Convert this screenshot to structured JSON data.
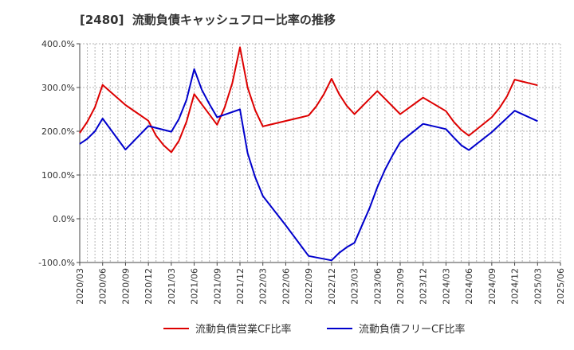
{
  "chart_data": {
    "type": "line",
    "title": "[2480]  流動負債キャッシュフロー比率の推移",
    "xlabel": "",
    "ylabel": "",
    "ylim": [
      -100,
      400
    ],
    "y_ticks": [
      "-100.0%",
      "0.0%",
      "100.0%",
      "200.0%",
      "300.0%",
      "400.0%"
    ],
    "y_tick_values": [
      -100,
      0,
      100,
      200,
      300,
      400
    ],
    "x_ticks": [
      "2020/03",
      "2020/06",
      "2020/09",
      "2020/12",
      "2021/03",
      "2021/06",
      "2021/09",
      "2021/12",
      "2022/03",
      "2022/06",
      "2022/09",
      "2022/12",
      "2023/03",
      "2023/06",
      "2023/09",
      "2023/12",
      "2024/03",
      "2024/06",
      "2024/09",
      "2024/12",
      "2025/03",
      "2025/06"
    ],
    "x_months": [
      "2020/03",
      "2020/04",
      "2020/05",
      "2020/06",
      "2020/07",
      "2020/08",
      "2020/09",
      "2020/10",
      "2020/11",
      "2020/12",
      "2021/01",
      "2021/02",
      "2021/03",
      "2021/04",
      "2021/05",
      "2021/06",
      "2021/07",
      "2021/08",
      "2021/09",
      "2021/10",
      "2021/11",
      "2021/12",
      "2022/01",
      "2022/02",
      "2022/03",
      "2022/04",
      "2022/05",
      "2022/06",
      "2022/07",
      "2022/08",
      "2022/09",
      "2022/10",
      "2022/11",
      "2022/12",
      "2023/01",
      "2023/02",
      "2023/03",
      "2023/04",
      "2023/05",
      "2023/06",
      "2023/07",
      "2023/08",
      "2023/09",
      "2023/10",
      "2023/11",
      "2023/12",
      "2024/01",
      "2024/02",
      "2024/03",
      "2024/04",
      "2024/05",
      "2024/06",
      "2024/07",
      "2024/08",
      "2024/09",
      "2024/10",
      "2024/11",
      "2024/12",
      "2025/01",
      "2025/02",
      "2025/03",
      "2025/04",
      "2025/05",
      "2025/06"
    ],
    "grid": true,
    "legend_position": "bottom",
    "series": [
      {
        "name": "流動負債営業CF比率",
        "color": "#dd0000",
        "points": [
          [
            "2020/03",
            196
          ],
          [
            "2020/04",
            222
          ],
          [
            "2020/05",
            255
          ],
          [
            "2020/06",
            306
          ],
          [
            "2020/09",
            260
          ],
          [
            "2020/12",
            224
          ],
          [
            "2021/01",
            190
          ],
          [
            "2021/02",
            168
          ],
          [
            "2021/03",
            152
          ],
          [
            "2021/04",
            178
          ],
          [
            "2021/05",
            222
          ],
          [
            "2021/06",
            285
          ],
          [
            "2021/09",
            215
          ],
          [
            "2021/10",
            255
          ],
          [
            "2021/11",
            310
          ],
          [
            "2021/12",
            392
          ],
          [
            "2022/01",
            300
          ],
          [
            "2022/02",
            248
          ],
          [
            "2022/03",
            211
          ],
          [
            "2022/09",
            236
          ],
          [
            "2022/10",
            257
          ],
          [
            "2022/11",
            285
          ],
          [
            "2022/12",
            320
          ],
          [
            "2023/01",
            285
          ],
          [
            "2023/02",
            258
          ],
          [
            "2023/03",
            239
          ],
          [
            "2023/06",
            292
          ],
          [
            "2023/09",
            239
          ],
          [
            "2023/12",
            277
          ],
          [
            "2024/03",
            246
          ],
          [
            "2024/04",
            222
          ],
          [
            "2024/05",
            203
          ],
          [
            "2024/06",
            190
          ],
          [
            "2024/09",
            232
          ],
          [
            "2024/10",
            253
          ],
          [
            "2024/11",
            280
          ],
          [
            "2024/12",
            318
          ],
          [
            "2025/03",
            305
          ]
        ]
      },
      {
        "name": "流動負債フリーCF比率",
        "color": "#0000cc",
        "points": [
          [
            "2020/03",
            171
          ],
          [
            "2020/04",
            183
          ],
          [
            "2020/05",
            200
          ],
          [
            "2020/06",
            229
          ],
          [
            "2020/09",
            158
          ],
          [
            "2020/12",
            212
          ],
          [
            "2021/03",
            199
          ],
          [
            "2021/04",
            228
          ],
          [
            "2021/05",
            272
          ],
          [
            "2021/06",
            342
          ],
          [
            "2021/07",
            295
          ],
          [
            "2021/08",
            262
          ],
          [
            "2021/09",
            232
          ],
          [
            "2021/12",
            250
          ],
          [
            "2022/01",
            150
          ],
          [
            "2022/02",
            95
          ],
          [
            "2022/03",
            52
          ],
          [
            "2022/06",
            -15
          ],
          [
            "2022/09",
            -85
          ],
          [
            "2022/12",
            -95
          ],
          [
            "2023/01",
            -78
          ],
          [
            "2023/02",
            -65
          ],
          [
            "2023/03",
            -55
          ],
          [
            "2023/04",
            -15
          ],
          [
            "2023/05",
            25
          ],
          [
            "2023/06",
            72
          ],
          [
            "2023/07",
            112
          ],
          [
            "2023/08",
            145
          ],
          [
            "2023/09",
            175
          ],
          [
            "2023/12",
            217
          ],
          [
            "2024/03",
            205
          ],
          [
            "2024/04",
            186
          ],
          [
            "2024/05",
            168
          ],
          [
            "2024/06",
            157
          ],
          [
            "2024/09",
            198
          ],
          [
            "2024/12",
            247
          ],
          [
            "2025/03",
            223
          ]
        ]
      }
    ]
  }
}
